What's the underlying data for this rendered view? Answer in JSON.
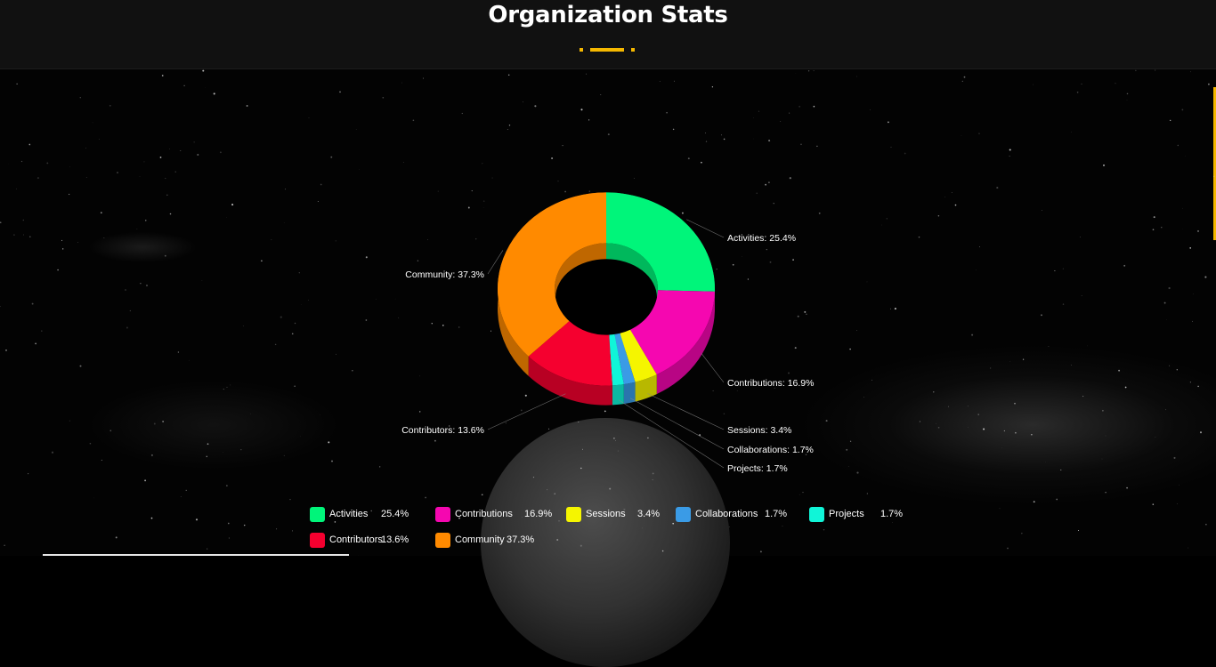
{
  "header": {
    "title": "Organization Stats"
  },
  "colors": {
    "accent": "#f5b800",
    "header_bg": "#111111"
  },
  "chart_data": {
    "type": "pie",
    "style": "3d-donut",
    "legend_position": "bottom",
    "slices": [
      {
        "name": "Activities",
        "value": 25.4,
        "label": "Activities: 25.4%",
        "pct_text": "25.4%",
        "color": "#00f57a",
        "side_color": "#00b85c"
      },
      {
        "name": "Contributions",
        "value": 16.9,
        "label": "Contributions: 16.9%",
        "pct_text": "16.9%",
        "color": "#f507b0",
        "side_color": "#b80584"
      },
      {
        "name": "Sessions",
        "value": 3.4,
        "label": "Sessions: 3.4%",
        "pct_text": "3.4%",
        "color": "#f5f500",
        "side_color": "#b8b800"
      },
      {
        "name": "Collaborations",
        "value": 1.7,
        "label": "Collaborations: 1.7%",
        "pct_text": "1.7%",
        "color": "#3a9be6",
        "side_color": "#2a74ad"
      },
      {
        "name": "Projects",
        "value": 1.7,
        "label": "Projects: 1.7%",
        "pct_text": "1.7%",
        "color": "#10f5d8",
        "side_color": "#0cb8a2"
      },
      {
        "name": "Contributors",
        "value": 13.6,
        "label": "Contributors: 13.6%",
        "pct_text": "13.6%",
        "color": "#f5002f",
        "side_color": "#b80023"
      },
      {
        "name": "Community",
        "value": 37.3,
        "label": "Community: 37.3%",
        "pct_text": "37.3%",
        "color": "#ff8a00",
        "side_color": "#bf6700"
      }
    ]
  }
}
